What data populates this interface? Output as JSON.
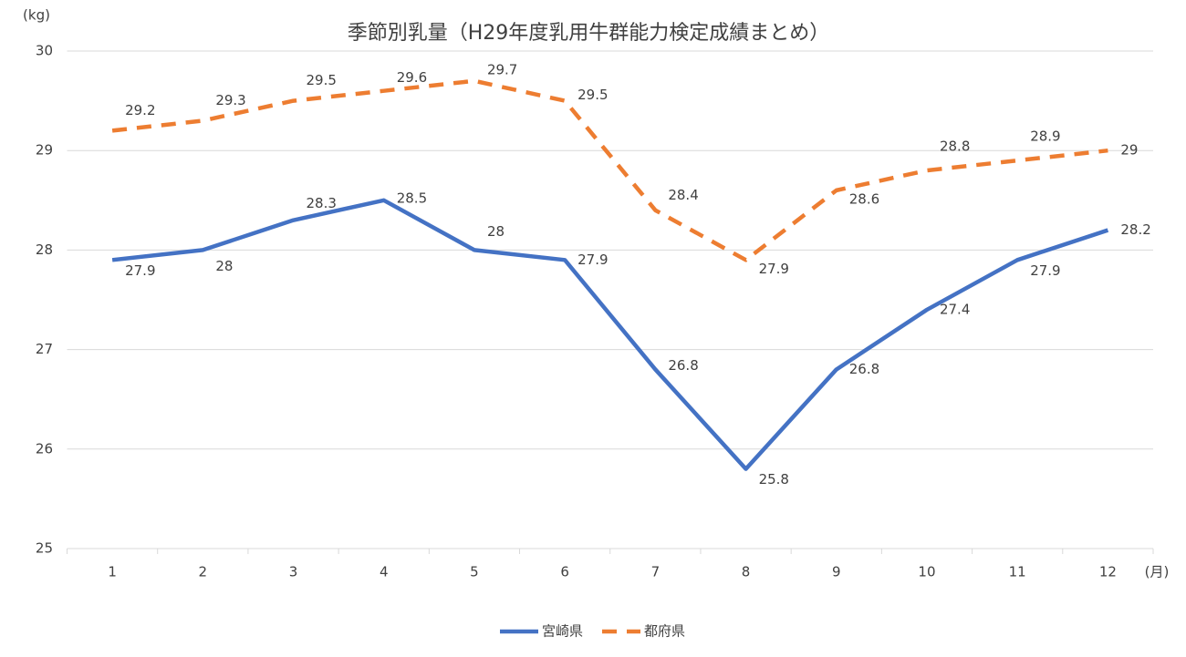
{
  "chart_data": {
    "type": "line",
    "title": "季節別乳量（H29年度乳用牛群能力検定成績まとめ）",
    "y_label": "(kg)",
    "x_label": "(月)",
    "categories": [
      "1",
      "2",
      "3",
      "4",
      "5",
      "6",
      "7",
      "8",
      "9",
      "10",
      "11",
      "12"
    ],
    "series": [
      {
        "name": "宮崎県",
        "color": "#4472c4",
        "dashed": false,
        "values": [
          27.9,
          28,
          28.3,
          28.5,
          28,
          27.9,
          26.8,
          25.8,
          26.8,
          27.4,
          27.9,
          28.2
        ]
      },
      {
        "name": "都府県",
        "color": "#ed7d31",
        "dashed": true,
        "values": [
          29.2,
          29.3,
          29.5,
          29.6,
          29.7,
          29.5,
          28.4,
          27.9,
          28.6,
          28.8,
          28.9,
          29
        ]
      }
    ],
    "ylim": [
      25,
      30
    ],
    "yticks": [
      25,
      26,
      27,
      28,
      29,
      30
    ],
    "grid": true,
    "legend": "bottom"
  }
}
